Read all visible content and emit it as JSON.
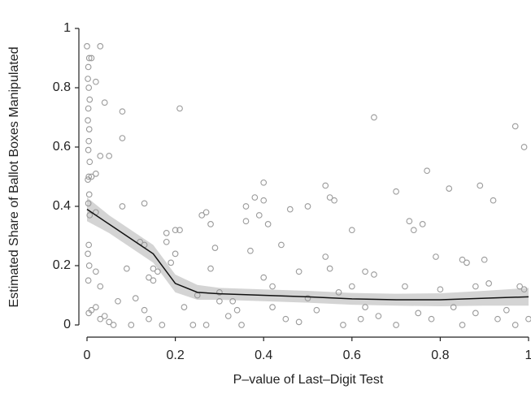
{
  "chart_data": {
    "type": "scatter",
    "x_label": "P–value of Last–Digit Test",
    "y_label": "Estimated Share of Ballot Boxes Manipulated",
    "xlim": [
      0,
      1
    ],
    "ylim": [
      0,
      1
    ],
    "xticks": [
      0,
      0.2,
      0.4,
      0.6,
      0.8,
      1
    ],
    "yticks": [
      0,
      0.2,
      0.4,
      0.6,
      0.8,
      1
    ],
    "point_color": "#9a9a9a",
    "line_color": "#111111",
    "band_color": "#d4d4d4",
    "points": {
      "x": [
        0,
        0.005,
        0.003,
        0.002,
        0.004,
        0.006,
        0.003,
        0.002,
        0.005,
        0.004,
        0.003,
        0.006,
        0.004,
        0.002,
        0.005,
        0.003,
        0.006,
        0.004,
        0.002,
        0.005,
        0.003,
        0.004,
        0.01,
        0.01,
        0.03,
        0.02,
        0.04,
        0.03,
        0.02,
        0.05,
        0.02,
        0.03,
        0.02,
        0.01,
        0.02,
        0.03,
        0.04,
        0.05,
        0.06,
        0.08,
        0.08,
        0.08,
        0.09,
        0.07,
        0.1,
        0.11,
        0.13,
        0.12,
        0.13,
        0.14,
        0.15,
        0.15,
        0.16,
        0.13,
        0.14,
        0.17,
        0.18,
        0.18,
        0.19,
        0.2,
        0.2,
        0.21,
        0.21,
        0.22,
        0.24,
        0.25,
        0.26,
        0.27,
        0.28,
        0.29,
        0.28,
        0.27,
        0.3,
        0.32,
        0.34,
        0.36,
        0.36,
        0.37,
        0.38,
        0.39,
        0.4,
        0.4,
        0.41,
        0.42,
        0.4,
        0.44,
        0.46,
        0.48,
        0.45,
        0.5,
        0.52,
        0.54,
        0.55,
        0.54,
        0.56,
        0.55,
        0.57,
        0.6,
        0.6,
        0.62,
        0.63,
        0.65,
        0.65,
        0.66,
        0.7,
        0.72,
        0.73,
        0.74,
        0.76,
        0.77,
        0.75,
        0.79,
        0.8,
        0.82,
        0.83,
        0.85,
        0.86,
        0.88,
        0.89,
        0.9,
        0.92,
        0.91,
        0.93,
        0.95,
        0.97,
        0.98,
        0.99,
        0.99,
        1,
        0.97,
        0.85,
        0.7,
        0.58,
        0.35,
        0.48,
        0.63,
        0.78,
        0.5,
        0.3,
        0.88,
        0.42,
        0.33
      ],
      "y": [
        0.94,
        0.9,
        0.87,
        0.83,
        0.8,
        0.76,
        0.73,
        0.69,
        0.66,
        0.62,
        0.59,
        0.55,
        0.5,
        0.49,
        0.44,
        0.41,
        0.37,
        0.27,
        0.24,
        0.2,
        0.15,
        0.04,
        0.9,
        0.5,
        0.94,
        0.82,
        0.75,
        0.57,
        0.51,
        0.57,
        0.38,
        0.13,
        0.18,
        0.05,
        0.06,
        0.02,
        0.03,
        0.01,
        0,
        0.72,
        0.63,
        0.4,
        0.19,
        0.08,
        0,
        0.09,
        0.41,
        0.28,
        0.27,
        0.16,
        0.15,
        0.19,
        0.18,
        0.05,
        0.02,
        0,
        0.31,
        0.28,
        0.21,
        0.24,
        0.32,
        0.73,
        0.32,
        0.06,
        0,
        0.1,
        0.37,
        0.38,
        0.34,
        0.26,
        0.19,
        0,
        0.08,
        0.03,
        0.05,
        0.4,
        0.35,
        0.25,
        0.43,
        0.37,
        0.48,
        0.42,
        0.34,
        0.13,
        0.16,
        0.27,
        0.39,
        0.18,
        0.02,
        0.4,
        0.05,
        0.47,
        0.43,
        0.23,
        0.42,
        0.19,
        0.11,
        0.32,
        0.13,
        0.02,
        0.18,
        0.7,
        0.17,
        0.03,
        0.45,
        0.13,
        0.35,
        0.32,
        0.34,
        0.52,
        0.04,
        0.23,
        0.12,
        0.46,
        0.06,
        0.22,
        0.21,
        0.13,
        0.47,
        0.22,
        0.42,
        0.14,
        0.02,
        0.05,
        0.67,
        0.13,
        0.6,
        0.12,
        0.02,
        0,
        0,
        0,
        0,
        0,
        0.01,
        0.06,
        0.02,
        0.09,
        0.11,
        0.04,
        0.06,
        0.08
      ]
    },
    "fit": {
      "x": [
        0,
        0.05,
        0.1,
        0.15,
        0.2,
        0.25,
        0.3,
        0.4,
        0.5,
        0.6,
        0.7,
        0.8,
        0.9,
        1
      ],
      "y": [
        0.39,
        0.34,
        0.29,
        0.24,
        0.14,
        0.11,
        0.105,
        0.1,
        0.095,
        0.088,
        0.085,
        0.085,
        0.09,
        0.095
      ],
      "lower": [
        0.35,
        0.31,
        0.26,
        0.21,
        0.11,
        0.085,
        0.085,
        0.08,
        0.075,
        0.068,
        0.065,
        0.063,
        0.065,
        0.065
      ],
      "upper": [
        0.43,
        0.37,
        0.32,
        0.27,
        0.17,
        0.135,
        0.125,
        0.12,
        0.115,
        0.108,
        0.105,
        0.107,
        0.115,
        0.125
      ]
    }
  }
}
